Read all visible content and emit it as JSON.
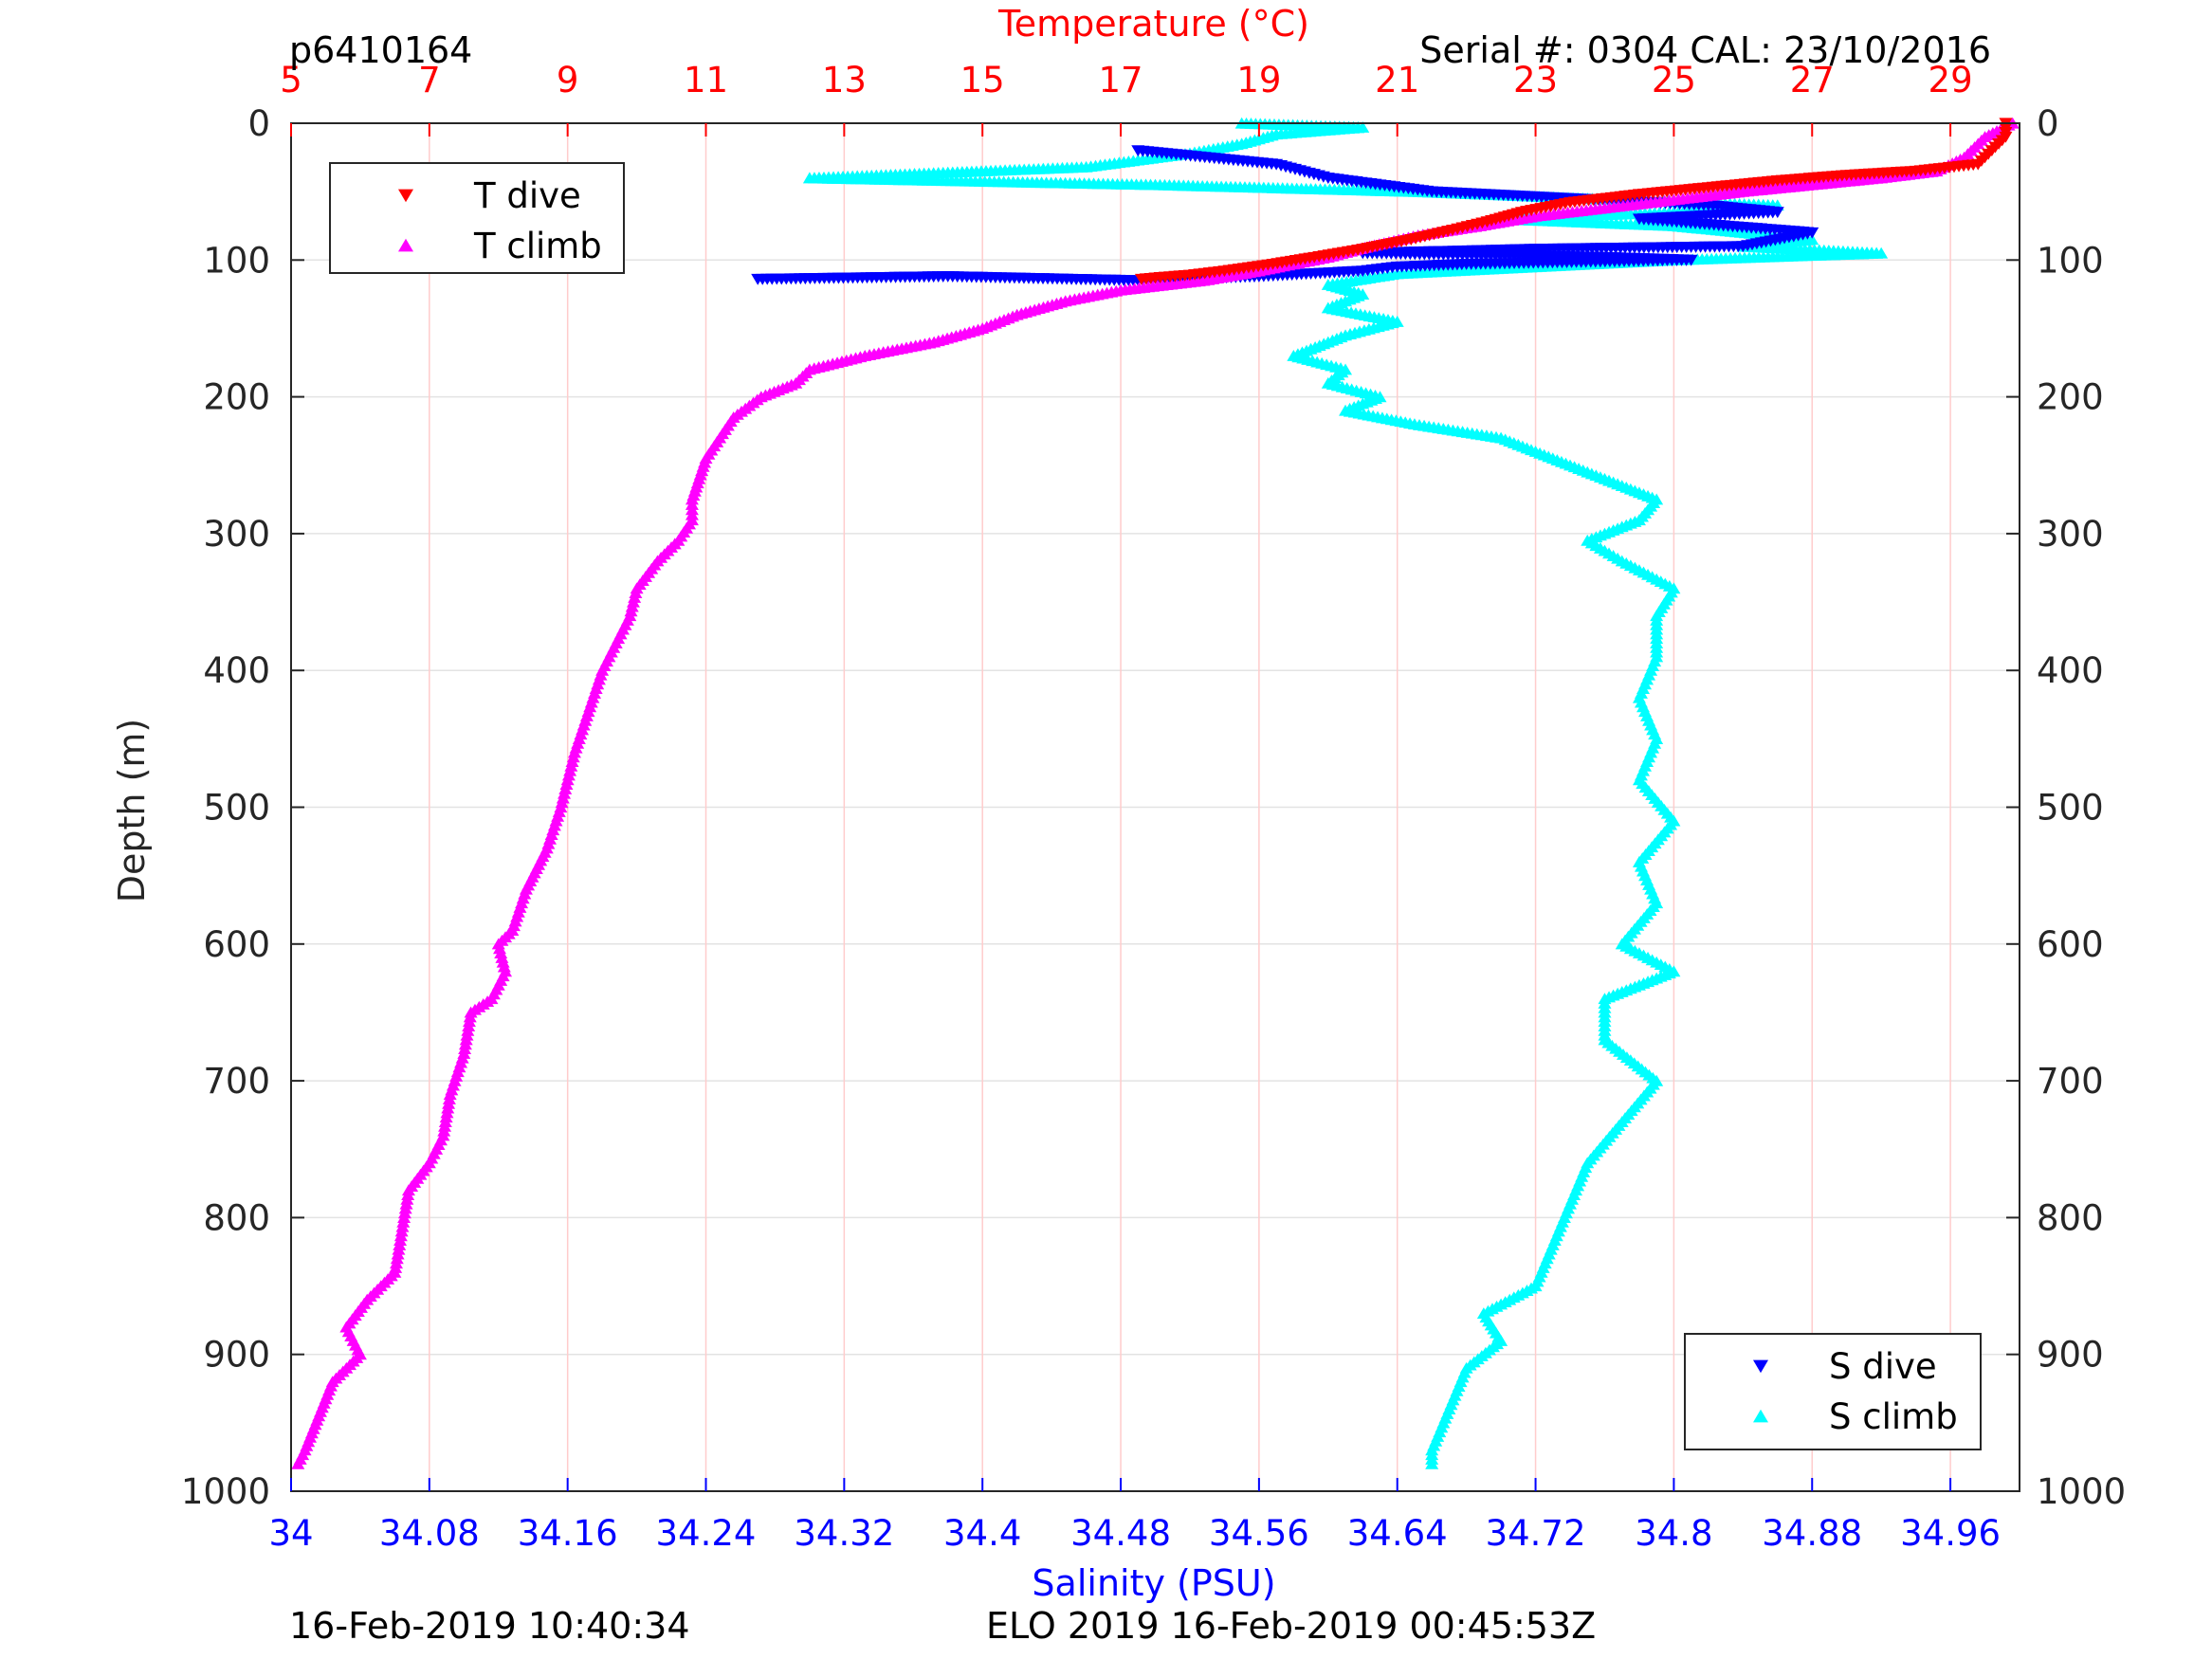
{
  "header": {
    "profile_id": "p6410164",
    "serial_cal": "Serial #: 0304  CAL: 23/10/2016"
  },
  "footer": {
    "left_timestamp": "16-Feb-2019 10:40:34",
    "right_caption": "ELO 2019 16-Feb-2019 00:45:53Z"
  },
  "colors": {
    "temperature_axis": "#ff0000",
    "salinity_axis": "#0000ff",
    "t_dive": "#ff0000",
    "t_climb": "#ff00ff",
    "s_dive": "#0000ff",
    "s_climb": "#00ffff",
    "grid": "#ffcccc"
  },
  "chart_data": {
    "type": "scatter",
    "title": "",
    "y_axis": {
      "label": "Depth (m)",
      "range": [
        1000,
        0
      ],
      "reversed": true,
      "ticks": [
        0,
        100,
        200,
        300,
        400,
        500,
        600,
        700,
        800,
        900,
        1000
      ],
      "tick_labels": [
        "0",
        "100",
        "200",
        "300",
        "400",
        "500",
        "600",
        "700",
        "800",
        "900",
        "1000"
      ]
    },
    "x_top_axis": {
      "label": "Temperature (°C)",
      "range": [
        5,
        30
      ],
      "ticks": [
        5,
        7,
        9,
        11,
        13,
        15,
        17,
        19,
        21,
        23,
        25,
        27,
        29
      ],
      "tick_labels": [
        "5",
        "7",
        "9",
        "11",
        "13",
        "15",
        "17",
        "19",
        "21",
        "23",
        "25",
        "27",
        "29"
      ]
    },
    "x_bottom_axis": {
      "label": "Salinity (PSU)",
      "range": [
        34,
        35
      ],
      "ticks": [
        34,
        34.08,
        34.16,
        34.24,
        34.32,
        34.4,
        34.48,
        34.56,
        34.64,
        34.72,
        34.8,
        34.88,
        34.96
      ],
      "tick_labels": [
        "34",
        "34.08",
        "34.16",
        "34.24",
        "34.32",
        "34.4",
        "34.48",
        "34.56",
        "34.64",
        "34.72",
        "34.8",
        "34.88",
        "34.96"
      ]
    },
    "grid": true,
    "legends": [
      {
        "placement": "top-left",
        "entries": [
          {
            "name": "T dive",
            "marker": "triangle-down",
            "color": "#ff0000"
          },
          {
            "name": "T climb",
            "marker": "triangle-up",
            "color": "#ff00ff"
          }
        ]
      },
      {
        "placement": "bottom-right",
        "entries": [
          {
            "name": "S dive",
            "marker": "triangle-down",
            "color": "#0000ff"
          },
          {
            "name": "S climb",
            "marker": "triangle-up",
            "color": "#00ffff"
          }
        ]
      }
    ],
    "series": [
      {
        "name": "T dive",
        "axis": "temperature",
        "marker": "triangle-down",
        "color": "#ff0000",
        "points": [
          [
            29.8,
            0
          ],
          [
            29.8,
            10
          ],
          [
            29.6,
            20
          ],
          [
            29.4,
            30
          ],
          [
            28.5,
            35
          ],
          [
            27.5,
            38
          ],
          [
            26.5,
            42
          ],
          [
            25.5,
            47
          ],
          [
            24.5,
            52
          ],
          [
            23.5,
            58
          ],
          [
            22.8,
            65
          ],
          [
            22.3,
            72
          ],
          [
            21.8,
            78
          ],
          [
            21.2,
            85
          ],
          [
            20.5,
            92
          ],
          [
            19.8,
            98
          ],
          [
            19.2,
            103
          ],
          [
            18.5,
            108
          ],
          [
            18.0,
            111
          ],
          [
            17.5,
            113
          ],
          [
            17.3,
            114
          ]
        ]
      },
      {
        "name": "T climb",
        "axis": "temperature",
        "marker": "triangle-up",
        "color": "#ff00ff",
        "points": [
          [
            29.9,
            0
          ],
          [
            29.5,
            10
          ],
          [
            29.2,
            25
          ],
          [
            28.8,
            35
          ],
          [
            28.0,
            40
          ],
          [
            27.0,
            45
          ],
          [
            26.0,
            50
          ],
          [
            25.0,
            56
          ],
          [
            24.0,
            62
          ],
          [
            23.0,
            68
          ],
          [
            22.2,
            75
          ],
          [
            21.3,
            82
          ],
          [
            20.6,
            90
          ],
          [
            20.0,
            98
          ],
          [
            19.5,
            103
          ],
          [
            19.0,
            108
          ],
          [
            18.2,
            115
          ],
          [
            17.0,
            122
          ],
          [
            16.2,
            130
          ],
          [
            15.5,
            140
          ],
          [
            15.0,
            150
          ],
          [
            14.3,
            160
          ],
          [
            13.3,
            170
          ],
          [
            12.5,
            180
          ],
          [
            12.3,
            190
          ],
          [
            11.8,
            200
          ],
          [
            11.4,
            215
          ],
          [
            11.2,
            230
          ],
          [
            11.0,
            245
          ],
          [
            10.9,
            260
          ],
          [
            10.8,
            275
          ],
          [
            10.8,
            290
          ],
          [
            10.6,
            305
          ],
          [
            10.3,
            320
          ],
          [
            10.0,
            340
          ],
          [
            9.9,
            360
          ],
          [
            9.7,
            380
          ],
          [
            9.5,
            400
          ],
          [
            9.3,
            430
          ],
          [
            9.1,
            460
          ],
          [
            9.0,
            480
          ],
          [
            8.9,
            500
          ],
          [
            8.7,
            530
          ],
          [
            8.4,
            560
          ],
          [
            8.2,
            590
          ],
          [
            8.0,
            600
          ],
          [
            8.1,
            620
          ],
          [
            7.9,
            640
          ],
          [
            7.6,
            650
          ],
          [
            7.5,
            680
          ],
          [
            7.3,
            710
          ],
          [
            7.2,
            740
          ],
          [
            7.0,
            760
          ],
          [
            6.7,
            780
          ],
          [
            6.6,
            810
          ],
          [
            6.5,
            840
          ],
          [
            6.1,
            860
          ],
          [
            5.8,
            880
          ],
          [
            6.0,
            900
          ],
          [
            5.6,
            920
          ],
          [
            5.4,
            945
          ],
          [
            5.2,
            970
          ],
          [
            5.1,
            980
          ]
        ]
      },
      {
        "name": "S dive",
        "axis": "salinity",
        "marker": "triangle-down",
        "color": "#0000ff",
        "points": [
          [
            34.49,
            20
          ],
          [
            34.57,
            30
          ],
          [
            34.6,
            40
          ],
          [
            34.66,
            50
          ],
          [
            34.74,
            55
          ],
          [
            34.82,
            60
          ],
          [
            34.86,
            65
          ],
          [
            34.78,
            70
          ],
          [
            34.88,
            80
          ],
          [
            34.84,
            90
          ],
          [
            34.72,
            92
          ],
          [
            34.62,
            95
          ],
          [
            34.76,
            98
          ],
          [
            34.81,
            100
          ],
          [
            34.68,
            103
          ],
          [
            34.64,
            105
          ],
          [
            34.62,
            108
          ],
          [
            34.56,
            112
          ],
          [
            34.49,
            115
          ],
          [
            34.38,
            112
          ],
          [
            34.27,
            114
          ]
        ]
      },
      {
        "name": "S climb",
        "axis": "salinity",
        "marker": "triangle-up",
        "color": "#00ffff",
        "points": [
          [
            34.55,
            0
          ],
          [
            34.62,
            3
          ],
          [
            34.57,
            8
          ],
          [
            34.55,
            15
          ],
          [
            34.52,
            22
          ],
          [
            34.46,
            32
          ],
          [
            34.3,
            40
          ],
          [
            34.5,
            45
          ],
          [
            34.65,
            50
          ],
          [
            34.75,
            55
          ],
          [
            34.86,
            60
          ],
          [
            34.8,
            65
          ],
          [
            34.7,
            70
          ],
          [
            34.8,
            75
          ],
          [
            34.88,
            85
          ],
          [
            34.84,
            90
          ],
          [
            34.92,
            95
          ],
          [
            34.8,
            100
          ],
          [
            34.72,
            105
          ],
          [
            34.64,
            110
          ],
          [
            34.6,
            118
          ],
          [
            34.62,
            125
          ],
          [
            34.6,
            135
          ],
          [
            34.64,
            145
          ],
          [
            34.61,
            155
          ],
          [
            34.58,
            170
          ],
          [
            34.61,
            180
          ],
          [
            34.6,
            190
          ],
          [
            34.63,
            200
          ],
          [
            34.61,
            210
          ],
          [
            34.65,
            220
          ],
          [
            34.7,
            230
          ],
          [
            34.73,
            245
          ],
          [
            34.76,
            260
          ],
          [
            34.79,
            275
          ],
          [
            34.78,
            290
          ],
          [
            34.75,
            305
          ],
          [
            34.77,
            320
          ],
          [
            34.8,
            340
          ],
          [
            34.79,
            360
          ],
          [
            34.79,
            390
          ],
          [
            34.78,
            420
          ],
          [
            34.79,
            450
          ],
          [
            34.78,
            480
          ],
          [
            34.8,
            510
          ],
          [
            34.78,
            540
          ],
          [
            34.79,
            570
          ],
          [
            34.77,
            600
          ],
          [
            34.8,
            620
          ],
          [
            34.76,
            640
          ],
          [
            34.76,
            670
          ],
          [
            34.79,
            700
          ],
          [
            34.77,
            730
          ],
          [
            34.75,
            760
          ],
          [
            34.74,
            790
          ],
          [
            34.73,
            820
          ],
          [
            34.72,
            850
          ],
          [
            34.69,
            870
          ],
          [
            34.7,
            890
          ],
          [
            34.68,
            910
          ],
          [
            34.67,
            940
          ],
          [
            34.66,
            970
          ],
          [
            34.66,
            980
          ]
        ]
      }
    ]
  }
}
